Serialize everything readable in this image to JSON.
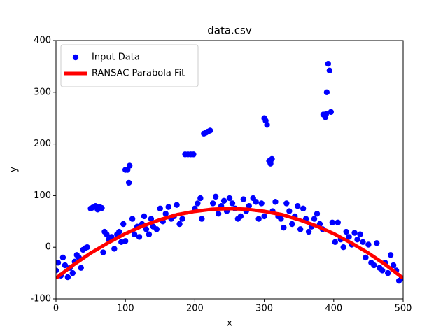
{
  "chart_data": {
    "type": "scatter",
    "title": "data.csv",
    "x_label": "x",
    "y_label": "y",
    "xlim": [
      0,
      500
    ],
    "ylim": [
      -100,
      400
    ],
    "xticks": [
      0,
      100,
      200,
      300,
      400,
      500
    ],
    "yticks": [
      -100,
      0,
      100,
      200,
      300,
      400
    ],
    "legend": "upper left",
    "series": [
      {
        "name": "Input Data",
        "color": "#0000ff",
        "kind": "markers",
        "x": [
          0,
          3,
          7,
          10,
          13,
          17,
          20,
          24,
          27,
          30,
          33,
          36,
          39,
          42,
          45,
          50,
          53,
          57,
          60,
          63,
          66,
          68,
          70,
          73,
          76,
          80,
          84,
          88,
          91,
          94,
          97,
          100,
          100,
          103,
          105,
          106,
          110,
          113,
          117,
          120,
          124,
          127,
          130,
          134,
          137,
          140,
          145,
          150,
          154,
          158,
          162,
          166,
          170,
          174,
          178,
          182,
          186,
          190,
          194,
          198,
          200,
          204,
          208,
          210,
          213,
          216,
          219,
          222,
          226,
          230,
          234,
          238,
          242,
          246,
          250,
          254,
          258,
          262,
          266,
          270,
          274,
          278,
          284,
          288,
          292,
          296,
          300,
          300,
          302,
          304,
          307,
          309,
          311,
          312,
          316,
          320,
          324,
          328,
          332,
          336,
          340,
          344,
          348,
          352,
          356,
          360,
          364,
          368,
          372,
          376,
          380,
          384,
          385,
          388,
          389,
          390,
          392,
          394,
          396,
          398,
          402,
          406,
          410,
          414,
          418,
          422,
          426,
          430,
          434,
          438,
          442,
          446,
          450,
          454,
          458,
          462,
          466,
          470,
          474,
          478,
          482,
          486,
          490,
          494,
          498
        ],
        "values": [
          -45,
          -30,
          -55,
          -20,
          -35,
          -58,
          -40,
          -50,
          -28,
          -15,
          -20,
          -40,
          -5,
          -2,
          0,
          75,
          77,
          80,
          73,
          78,
          76,
          -10,
          30,
          25,
          15,
          20,
          -3,
          25,
          30,
          10,
          45,
          150,
          12,
          150,
          125,
          158,
          55,
          25,
          40,
          20,
          45,
          60,
          35,
          25,
          55,
          40,
          35,
          75,
          50,
          65,
          78,
          55,
          60,
          82,
          45,
          55,
          180,
          180,
          180,
          180,
          75,
          85,
          95,
          55,
          220,
          222,
          224,
          226,
          85,
          98,
          65,
          80,
          90,
          70,
          95,
          85,
          75,
          55,
          60,
          93,
          70,
          80,
          95,
          88,
          55,
          85,
          250,
          60,
          245,
          237,
          167,
          162,
          171,
          70,
          88,
          60,
          55,
          38,
          85,
          70,
          45,
          60,
          80,
          35,
          75,
          55,
          30,
          40,
          55,
          65,
          45,
          35,
          257,
          252,
          258,
          300,
          355,
          342,
          262,
          48,
          10,
          48,
          15,
          0,
          30,
          20,
          5,
          28,
          15,
          25,
          10,
          -20,
          5,
          -30,
          -35,
          8,
          -40,
          -45,
          -30,
          -50,
          -15,
          -35,
          -45,
          -65,
          -60
        ]
      },
      {
        "name": "RANSAC Parabola Fit",
        "color": "#ff0000",
        "kind": "line",
        "x": [
          0,
          25,
          50,
          75,
          100,
          125,
          150,
          175,
          200,
          225,
          250,
          275,
          300,
          325,
          350,
          375,
          400,
          425,
          450,
          475,
          500
        ],
        "values": [
          -60,
          -34.4,
          -11.4,
          8.4,
          26.4,
          41.3,
          53.4,
          63.3,
          69.6,
          73.7,
          75,
          73.7,
          69.6,
          63.3,
          53.4,
          41.3,
          26.4,
          8.4,
          -11.4,
          -34.4,
          -60
        ]
      }
    ]
  }
}
